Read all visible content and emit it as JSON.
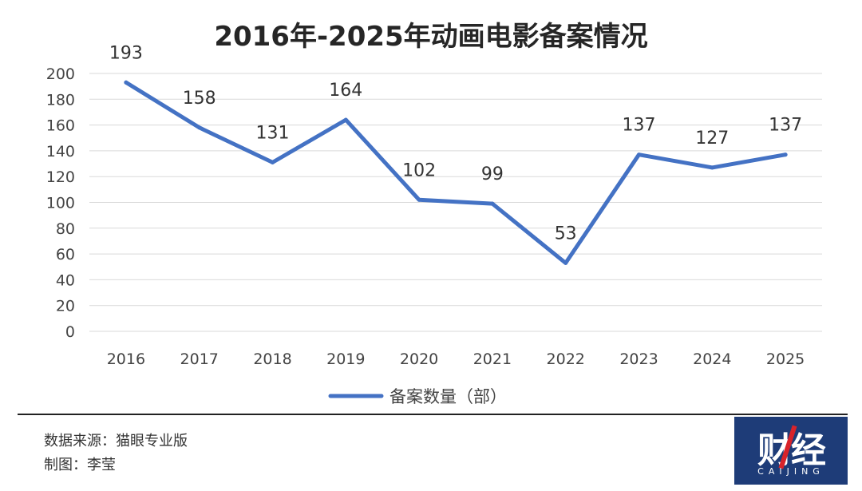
{
  "chart_data": {
    "type": "line",
    "title": "2016年-2025年动画电影备案情况",
    "categories": [
      "2016",
      "2017",
      "2018",
      "2019",
      "2020",
      "2021",
      "2022",
      "2023",
      "2024",
      "2025"
    ],
    "series": [
      {
        "name": "备案数量（部）",
        "values": [
          193,
          158,
          131,
          164,
          102,
          99,
          53,
          137,
          127,
          137
        ],
        "color": "#4472c4"
      }
    ],
    "ylim": [
      0,
      200
    ],
    "yticks": [
      0,
      20,
      40,
      60,
      80,
      100,
      120,
      140,
      160,
      180,
      200
    ],
    "grid": true,
    "legend": "bottom"
  },
  "footer": {
    "source": "数据来源：猫眼专业版",
    "author": "制图：李莹"
  },
  "logo": {
    "text": "财经",
    "sub": "CAIJING"
  }
}
